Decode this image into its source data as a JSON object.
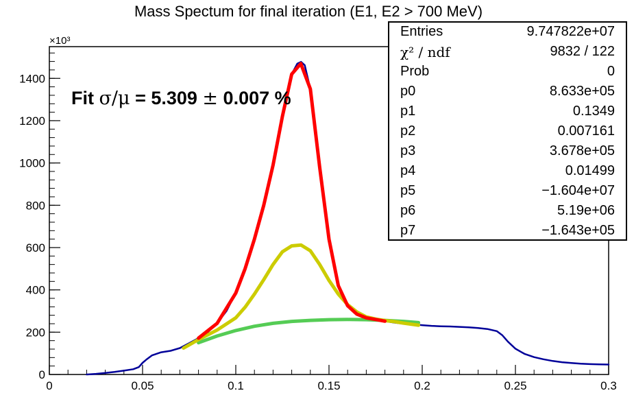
{
  "chart_data": {
    "type": "line",
    "title": "Mass Spectum for final iteration (E1, E2 > 700 MeV)",
    "xlabel": "",
    "ylabel": "",
    "y_multiplier_label": "×10³",
    "xlim": [
      0,
      0.3
    ],
    "ylim": [
      0,
      1550
    ],
    "x_ticks": [
      0,
      0.05,
      0.1,
      0.15,
      0.2,
      0.25,
      0.3
    ],
    "x_tick_labels": [
      "0",
      "0.05",
      "0.1",
      "0.15",
      "0.2",
      "0.25",
      "0.3"
    ],
    "y_ticks": [
      0,
      200,
      400,
      600,
      800,
      1000,
      1200,
      1400
    ],
    "y_tick_labels": [
      "0",
      "200",
      "400",
      "600",
      "800",
      "1000",
      "1200",
      "1400"
    ],
    "fit_annotation": {
      "prefix": "Fit ",
      "symbol": "σ/μ",
      "equals": " = 5.309 ",
      "pm": "±",
      "error": " 0.007 %"
    },
    "stats_box": [
      {
        "key": "Entries",
        "value": "9.747822e+07"
      },
      {
        "key": "χ² / ndf",
        "value": "9832 / 122"
      },
      {
        "key": "Prob",
        "value": "0"
      },
      {
        "key": "p0",
        "value": "8.633e+05"
      },
      {
        "key": "p1",
        "value": "0.1349"
      },
      {
        "key": "p2",
        "value": "0.007161"
      },
      {
        "key": "p3",
        "value": "3.678e+05"
      },
      {
        "key": "p4",
        "value": "0.01499"
      },
      {
        "key": "p5",
        "value": "−1.604e+07"
      },
      {
        "key": "p6",
        "value": "5.19e+06"
      },
      {
        "key": "p7",
        "value": "−1.643e+05"
      }
    ],
    "series": [
      {
        "role": "histogram",
        "color": "#000099",
        "x": [
          0.02,
          0.025,
          0.03,
          0.035,
          0.04,
          0.045,
          0.048,
          0.05,
          0.052,
          0.055,
          0.06,
          0.065,
          0.07,
          0.075,
          0.08,
          0.085,
          0.09,
          0.095,
          0.1,
          0.105,
          0.11,
          0.115,
          0.12,
          0.125,
          0.13,
          0.133,
          0.135,
          0.137,
          0.14,
          0.145,
          0.15,
          0.155,
          0.16,
          0.165,
          0.17,
          0.175,
          0.18,
          0.185,
          0.19,
          0.195,
          0.2,
          0.205,
          0.21,
          0.215,
          0.22,
          0.225,
          0.23,
          0.235,
          0.24,
          0.243,
          0.246,
          0.25,
          0.255,
          0.26,
          0.265,
          0.27,
          0.275,
          0.28,
          0.285,
          0.29,
          0.295,
          0.3
        ],
        "y": [
          0,
          3,
          7,
          12,
          18,
          25,
          35,
          55,
          70,
          90,
          105,
          112,
          125,
          148,
          172,
          200,
          242,
          300,
          385,
          500,
          640,
          800,
          990,
          1220,
          1420,
          1470,
          1478,
          1462,
          1350,
          980,
          640,
          420,
          325,
          285,
          268,
          260,
          252,
          245,
          240,
          237,
          233,
          230,
          228,
          227,
          225,
          223,
          220,
          215,
          205,
          185,
          155,
          122,
          97,
          82,
          72,
          64,
          58,
          54,
          51,
          49,
          48,
          47
        ]
      },
      {
        "role": "total-fit",
        "color": "#ff0000",
        "x": [
          0.08,
          0.09,
          0.1,
          0.105,
          0.11,
          0.115,
          0.12,
          0.125,
          0.13,
          0.1349,
          0.14,
          0.145,
          0.15,
          0.155,
          0.16,
          0.165,
          0.17,
          0.175,
          0.18
        ],
        "y": [
          172,
          242,
          385,
          500,
          640,
          800,
          990,
          1220,
          1420,
          1470,
          1350,
          980,
          640,
          420,
          325,
          285,
          268,
          260,
          252
        ]
      },
      {
        "role": "signal-plus-background",
        "color": "#cccc00",
        "x": [
          0.072,
          0.08,
          0.09,
          0.1,
          0.105,
          0.11,
          0.115,
          0.12,
          0.125,
          0.13,
          0.135,
          0.14,
          0.145,
          0.15,
          0.155,
          0.16,
          0.165,
          0.17,
          0.175,
          0.18,
          0.185,
          0.19,
          0.198
        ],
        "y": [
          125,
          165,
          210,
          268,
          318,
          380,
          448,
          520,
          580,
          608,
          612,
          585,
          520,
          445,
          380,
          330,
          295,
          272,
          262,
          255,
          250,
          243,
          233
        ]
      },
      {
        "role": "background",
        "color": "#55cc55",
        "x": [
          0.08,
          0.09,
          0.1,
          0.11,
          0.12,
          0.13,
          0.14,
          0.15,
          0.16,
          0.17,
          0.18,
          0.19,
          0.198
        ],
        "y": [
          150,
          182,
          208,
          228,
          242,
          251,
          256,
          259,
          260,
          259,
          256,
          251,
          245
        ]
      }
    ]
  }
}
